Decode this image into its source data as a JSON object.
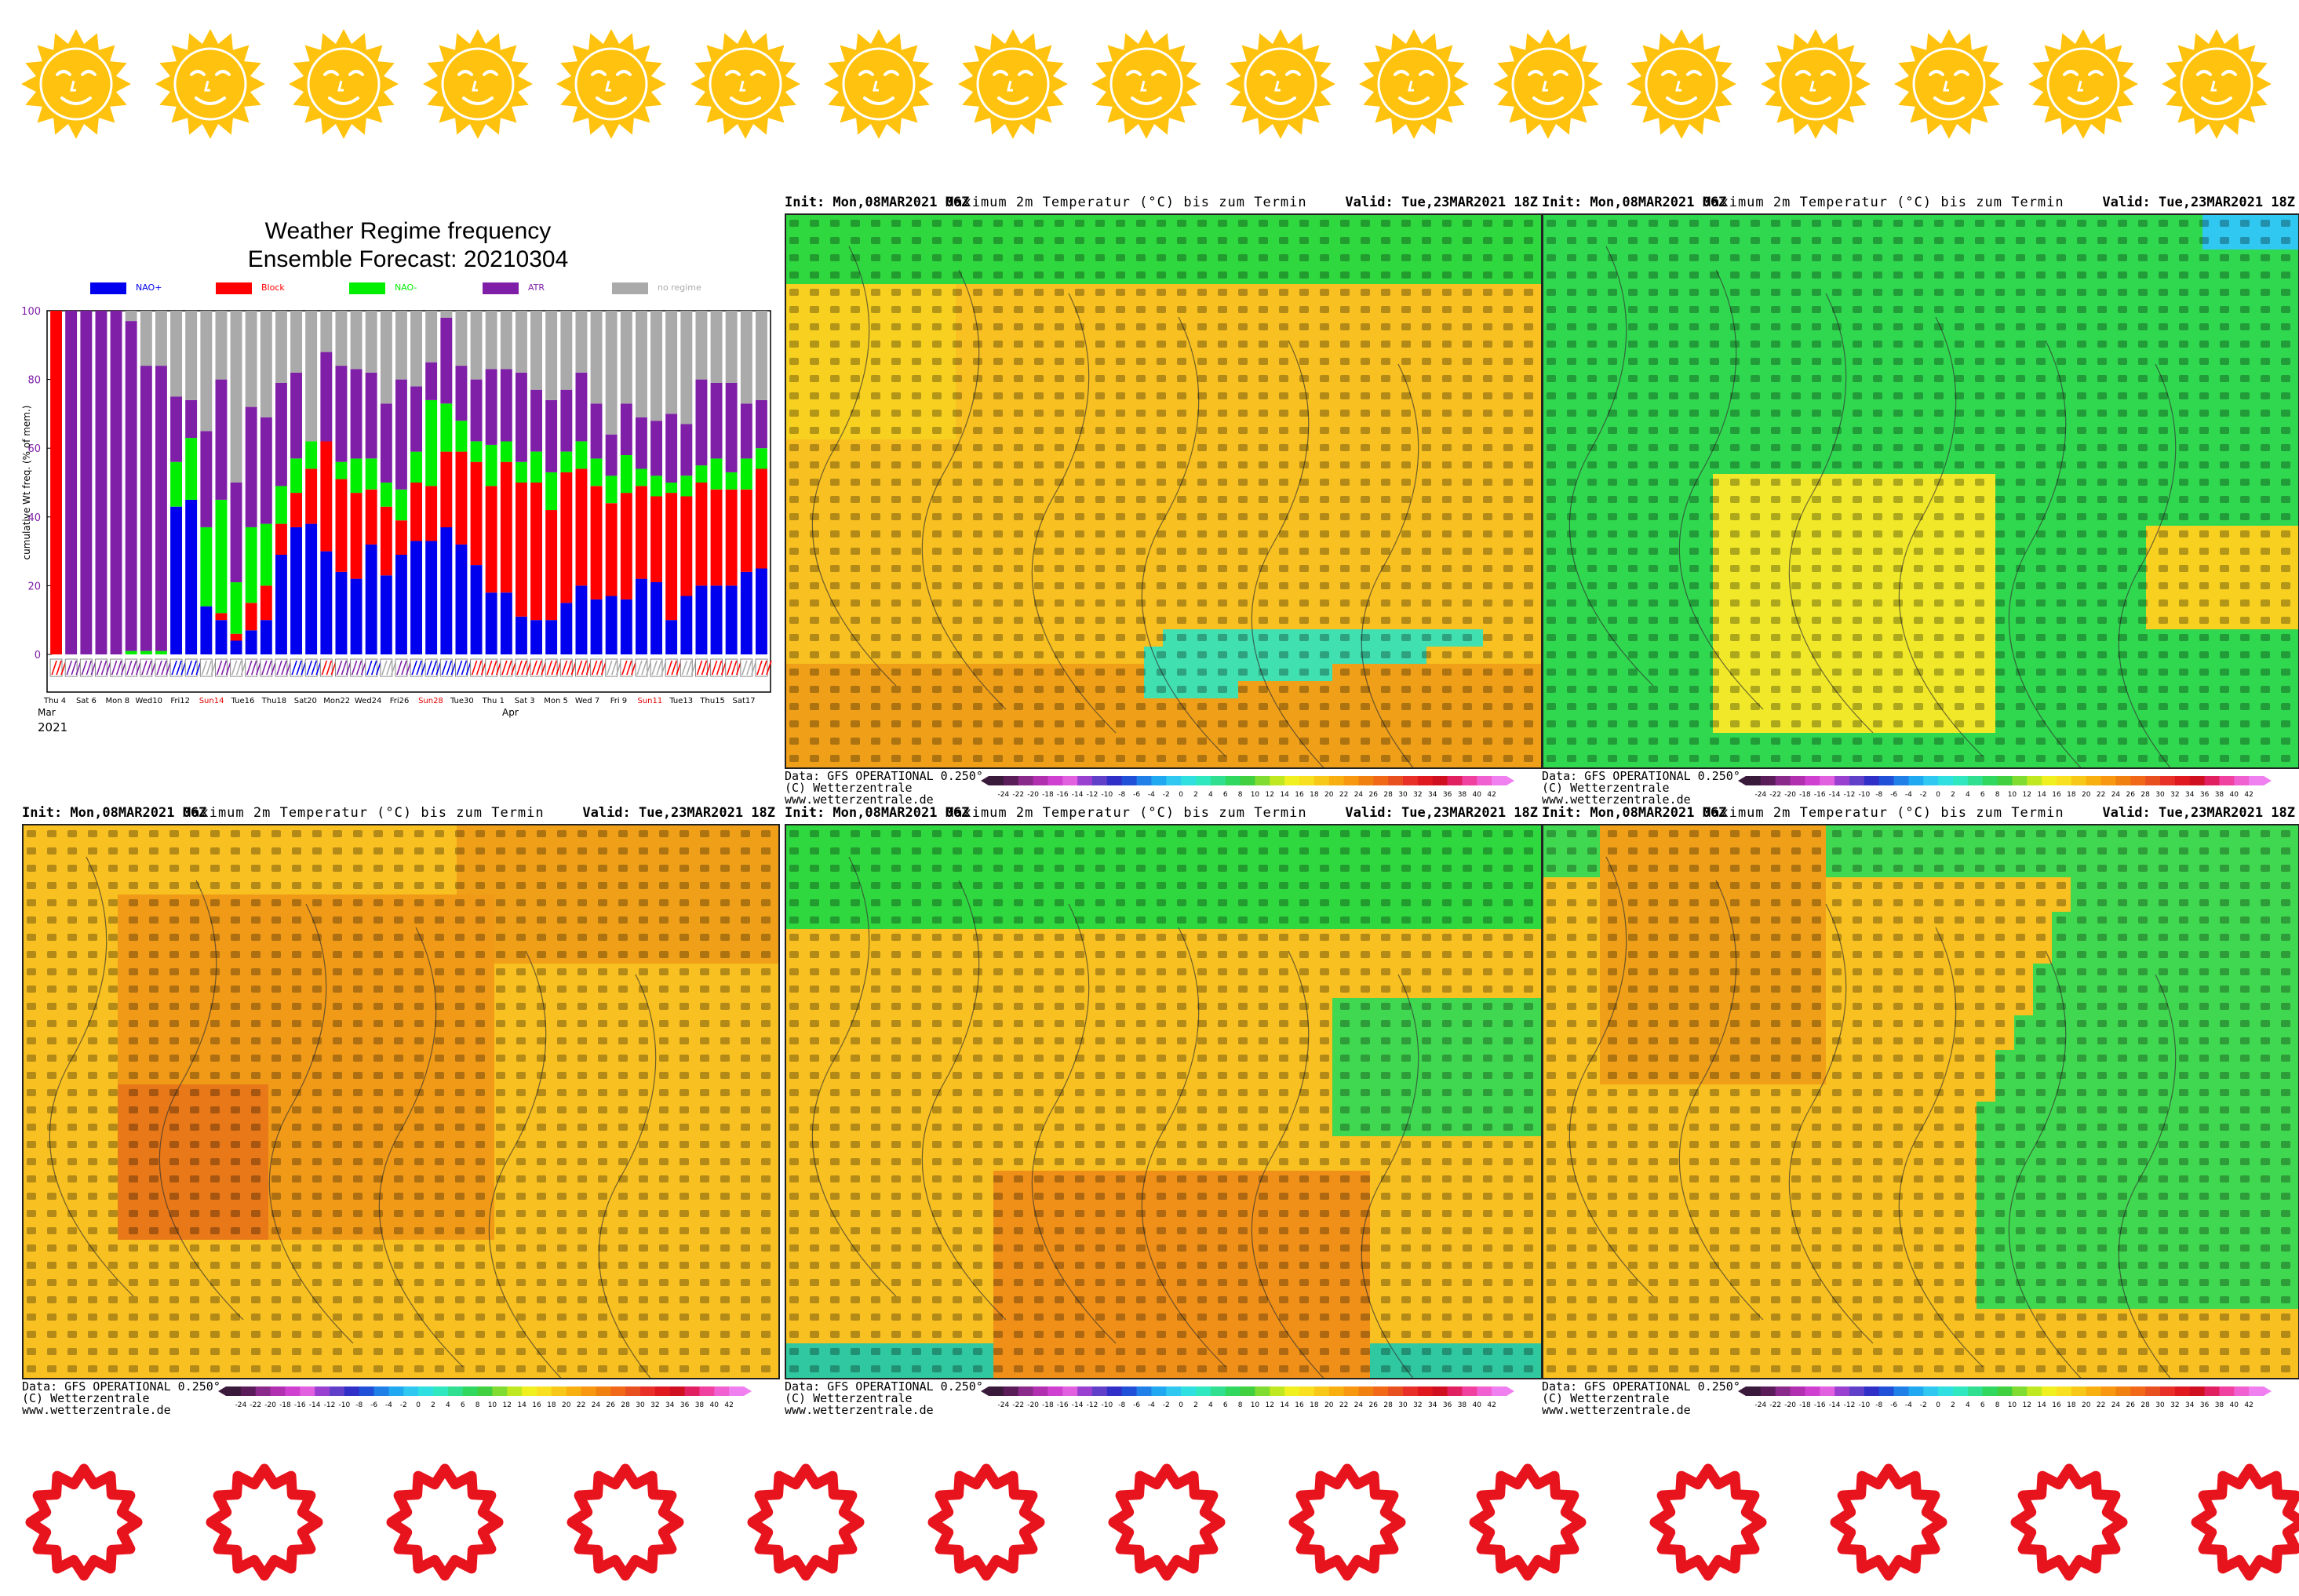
{
  "decor": {
    "top_icon": "smiling-sun-icon",
    "top_color": "#ffc20e",
    "bottom_icon": "sun-outline-icon",
    "bottom_color": "#e8141d"
  },
  "chart_data": {
    "type": "bar",
    "title": "Weather Regime frequency",
    "subtitle": "Ensemble Forecast: 20210304",
    "ylabel": "cumulative Wt freq. (% of mem.)",
    "ylim": [
      0,
      100
    ],
    "yticks": [
      "0",
      "20",
      "40",
      "60",
      "80",
      "100"
    ],
    "grid": false,
    "legend_position": "top",
    "legend": [
      {
        "name": "NAO+",
        "color": "#0000ee"
      },
      {
        "name": "Block",
        "color": "#ff0000"
      },
      {
        "name": "NAO-",
        "color": "#00ee00"
      },
      {
        "name": "ATR",
        "color": "#7f1fa8"
      },
      {
        "name": "no regime",
        "color": "#aaaaaa"
      }
    ],
    "xtick_labels": [
      "Thu 4",
      "Sat 6",
      "Mon 8",
      "Wed10",
      "Fri12",
      "Sun14",
      "Tue16",
      "Thu18",
      "Sat20",
      "Mon22",
      "Wed24",
      "Fri26",
      "Sun28",
      "Tue30",
      "Thu 1",
      "Sat 3",
      "Mon 5",
      "Wed 7",
      "Fri 9",
      "Sun11",
      "Tue13",
      "Thu15",
      "Sat17"
    ],
    "xtick_red": [
      "Sun14",
      "Sun28",
      "Sun11"
    ],
    "month_labels": [
      "Mar",
      "Apr"
    ],
    "year_label": "2021",
    "series": [
      {
        "name": "NAO+",
        "values": [
          0,
          0,
          0,
          0,
          0,
          0,
          0,
          0,
          43,
          45,
          14,
          10,
          4,
          7,
          10,
          29,
          37,
          38,
          30,
          24,
          22,
          32,
          23,
          29,
          33,
          33,
          37,
          32,
          26,
          18,
          18,
          11,
          10,
          10,
          15,
          20,
          16,
          17,
          16,
          22,
          21,
          10,
          17,
          20,
          20,
          20,
          24,
          25
        ]
      },
      {
        "name": "Block",
        "values": [
          100,
          0,
          0,
          0,
          0,
          0,
          0,
          0,
          0,
          0,
          0,
          2,
          2,
          8,
          10,
          9,
          10,
          16,
          32,
          27,
          25,
          16,
          20,
          10,
          17,
          16,
          22,
          27,
          30,
          31,
          38,
          39,
          40,
          32,
          38,
          34,
          33,
          27,
          31,
          27,
          25,
          37,
          29,
          30,
          28,
          28,
          24,
          29
        ]
      },
      {
        "name": "NAO-",
        "values": [
          0,
          0,
          0,
          0,
          0,
          1,
          1,
          1,
          13,
          18,
          23,
          33,
          15,
          22,
          18,
          11,
          10,
          8,
          0,
          5,
          10,
          9,
          7,
          9,
          9,
          25,
          14,
          9,
          6,
          12,
          6,
          6,
          9,
          11,
          6,
          8,
          8,
          8,
          11,
          5,
          6,
          3,
          6,
          5,
          9,
          5,
          9,
          6
        ]
      },
      {
        "name": "ATR",
        "values": [
          0,
          100,
          100,
          100,
          100,
          96,
          83,
          83,
          19,
          11,
          28,
          35,
          29,
          35,
          31,
          30,
          25,
          0,
          26,
          28,
          26,
          25,
          23,
          32,
          19,
          11,
          25,
          16,
          18,
          22,
          21,
          26,
          18,
          21,
          18,
          20,
          16,
          12,
          15,
          15,
          16,
          20,
          15,
          25,
          22,
          26,
          16,
          14
        ]
      },
      {
        "name": "no regime",
        "values": [
          0,
          0,
          0,
          0,
          0,
          3,
          16,
          16,
          25,
          26,
          35,
          20,
          50,
          28,
          31,
          21,
          18,
          38,
          12,
          16,
          17,
          18,
          27,
          20,
          22,
          15,
          2,
          16,
          20,
          17,
          17,
          18,
          23,
          26,
          23,
          18,
          27,
          36,
          27,
          31,
          32,
          30,
          33,
          20,
          21,
          21,
          27,
          26
        ]
      }
    ]
  },
  "panels": [
    {
      "init": "Init: Mon,08MAR2021 06Z",
      "title": "Maximum 2m Temperatur (°C) bis zum Termin",
      "valid": "Valid: Tue,23MAR2021 18Z",
      "foot1": "Data: GFS OPERATIONAL 0.250°",
      "foot2": "(C) Wetterzentrale",
      "foot3": "www.wetterzentrale.de",
      "region": "western Europe (France, Alps)",
      "field": "warm"
    },
    {
      "init": "Init: Mon,08MAR2021 06Z",
      "title": "Maximum 2m Temperatur (°C) bis zum Termin",
      "valid": "Valid: Tue,23MAR2021 18Z",
      "foot1": "Data: GFS OPERATIONAL 0.250°",
      "foot2": "(C) Wetterzentrale",
      "foot3": "www.wetterzentrale.de",
      "region": "British Isles / North Sea",
      "field": "cool"
    },
    {
      "init": "Init: Mon,08MAR2021 06Z",
      "title": "Maximum 2m Temperatur (°C) bis zum Termin",
      "valid": "Valid: Tue,23MAR2021 18Z",
      "foot1": "Data: GFS OPERATIONAL 0.250°",
      "foot2": "(C) Wetterzentrale",
      "foot3": "www.wetterzentrale.de",
      "region": "Iberian Peninsula",
      "field": "hot"
    },
    {
      "init": "Init: Mon,08MAR2021 06Z",
      "title": "Maximum 2m Temperatur (°C) bis zum Termin",
      "valid": "Valid: Tue,23MAR2021 18Z",
      "foot1": "Data: GFS OPERATIONAL 0.250°",
      "foot2": "(C) Wetterzentrale",
      "foot3": "www.wetterzentrale.de",
      "region": "France",
      "field": "warm2"
    },
    {
      "init": "Init: Mon,08MAR2021 06Z",
      "title": "Maximum 2m Temperatur (°C) bis zum Termin",
      "valid": "Valid: Tue,23MAR2021 18Z",
      "foot1": "Data: GFS OPERATIONAL 0.250°",
      "foot2": "(C) Wetterzentrale",
      "foot3": "www.wetterzentrale.de",
      "region": "Italy / Balkans",
      "field": "mixed"
    }
  ],
  "colorbar": {
    "labels": [
      "-24",
      "-22",
      "-20",
      "-18",
      "-16",
      "-14",
      "-12",
      "-10",
      "-8",
      "-6",
      "-4",
      "-2",
      "0",
      "2",
      "4",
      "6",
      "8",
      "10",
      "12",
      "14",
      "16",
      "18",
      "20",
      "22",
      "24",
      "26",
      "28",
      "30",
      "32",
      "34",
      "36",
      "38",
      "40",
      "42"
    ],
    "colors": [
      "#3a1a3a",
      "#5a1d5a",
      "#8a2a8a",
      "#b030b0",
      "#d040d0",
      "#e060e0",
      "#9a40d0",
      "#6040c8",
      "#3030c8",
      "#2050d8",
      "#2080e8",
      "#20a8f0",
      "#30c8f0",
      "#30e0e0",
      "#30e8c0",
      "#30e090",
      "#30d860",
      "#40d040",
      "#80dc30",
      "#c0e820",
      "#f0f020",
      "#f8e020",
      "#f8c818",
      "#f8b010",
      "#f89810",
      "#f08010",
      "#f06818",
      "#e85020",
      "#e83028",
      "#e01820",
      "#d01020",
      "#e02060",
      "#f040a0",
      "#f060d0",
      "#f080f0"
    ]
  }
}
